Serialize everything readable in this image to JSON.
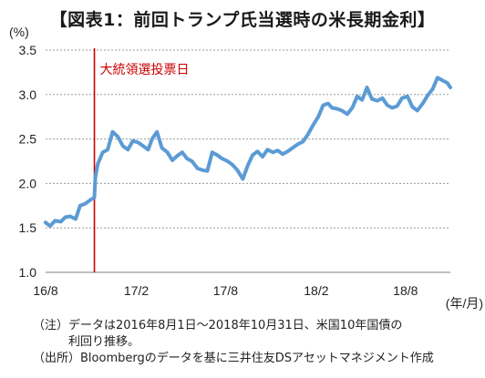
{
  "title": "【図表1：前回トランプ氏当選時の米長期金利】",
  "chart_data": {
    "type": "line",
    "title": "【図表1：前回トランプ氏当選時の米長期金利】",
    "ylabel": "(%)",
    "xlabel": "(年/月)",
    "ylim": [
      1.0,
      3.5
    ],
    "yticks": [
      1.0,
      1.5,
      2.0,
      2.5,
      3.0,
      3.5
    ],
    "ytick_labels": [
      "1.0",
      "1.5",
      "2.0",
      "2.5",
      "3.0",
      "3.5"
    ],
    "xlim": [
      "2016-08-01",
      "2018-10-31"
    ],
    "xticks": [
      "2016-08-01",
      "2017-02-01",
      "2017-08-01",
      "2018-02-01",
      "2018-08-01"
    ],
    "xtick_labels": [
      "16/8",
      "17/2",
      "17/8",
      "18/2",
      "18/8"
    ],
    "grid": "horizontal dashed",
    "series_color": "#5b9bd5",
    "annotation": {
      "date": "2016-11-08",
      "label": "大統領選投票日",
      "color": "#cc0000"
    },
    "series": [
      {
        "x": [
          "2016-08-01",
          "2016-08-10",
          "2016-08-20",
          "2016-09-01",
          "2016-09-10",
          "2016-09-20",
          "2016-10-01",
          "2016-10-10",
          "2016-10-20",
          "2016-11-01",
          "2016-11-08",
          "2016-11-10",
          "2016-11-15",
          "2016-11-25",
          "2016-12-05",
          "2016-12-15",
          "2016-12-25",
          "2017-01-05",
          "2017-01-15",
          "2017-01-25",
          "2017-02-05",
          "2017-02-15",
          "2017-02-25",
          "2017-03-05",
          "2017-03-15",
          "2017-03-25",
          "2017-04-05",
          "2017-04-15",
          "2017-04-25",
          "2017-05-05",
          "2017-05-15",
          "2017-05-25",
          "2017-06-05",
          "2017-06-15",
          "2017-06-25",
          "2017-07-05",
          "2017-07-15",
          "2017-07-25",
          "2017-08-05",
          "2017-08-15",
          "2017-08-25",
          "2017-09-05",
          "2017-09-15",
          "2017-09-25",
          "2017-10-05",
          "2017-10-15",
          "2017-10-25",
          "2017-11-05",
          "2017-11-15",
          "2017-11-25",
          "2017-12-05",
          "2017-12-15",
          "2017-12-25",
          "2018-01-05",
          "2018-01-15",
          "2018-01-25",
          "2018-02-05",
          "2018-02-15",
          "2018-02-25",
          "2018-03-05",
          "2018-03-15",
          "2018-03-25",
          "2018-04-05",
          "2018-04-15",
          "2018-04-25",
          "2018-05-05",
          "2018-05-15",
          "2018-05-25",
          "2018-06-05",
          "2018-06-15",
          "2018-06-25",
          "2018-07-05",
          "2018-07-15",
          "2018-07-25",
          "2018-08-05",
          "2018-08-15",
          "2018-08-25",
          "2018-09-05",
          "2018-09-15",
          "2018-09-25",
          "2018-10-05",
          "2018-10-15",
          "2018-10-25",
          "2018-10-31"
        ],
        "values": [
          1.56,
          1.52,
          1.58,
          1.57,
          1.62,
          1.63,
          1.6,
          1.75,
          1.77,
          1.82,
          1.84,
          2.07,
          2.22,
          2.35,
          2.38,
          2.58,
          2.53,
          2.42,
          2.38,
          2.48,
          2.46,
          2.42,
          2.38,
          2.5,
          2.58,
          2.4,
          2.35,
          2.26,
          2.31,
          2.35,
          2.28,
          2.25,
          2.17,
          2.15,
          2.14,
          2.35,
          2.32,
          2.28,
          2.25,
          2.21,
          2.15,
          2.05,
          2.2,
          2.32,
          2.36,
          2.3,
          2.38,
          2.35,
          2.37,
          2.33,
          2.36,
          2.4,
          2.44,
          2.47,
          2.55,
          2.65,
          2.75,
          2.88,
          2.9,
          2.85,
          2.84,
          2.82,
          2.78,
          2.85,
          2.98,
          2.94,
          3.08,
          2.95,
          2.93,
          2.96,
          2.88,
          2.85,
          2.87,
          2.96,
          2.98,
          2.86,
          2.82,
          2.9,
          2.99,
          3.06,
          3.19,
          3.16,
          3.13,
          3.08
        ]
      }
    ]
  },
  "notes": {
    "line1": "（注）データは2016年8月1日～2018年10月31日、米国10年国債の",
    "line2": "利回り推移。",
    "line3": "（出所）Bloombergのデータを基に三井住友DSアセットマネジメント作成"
  }
}
